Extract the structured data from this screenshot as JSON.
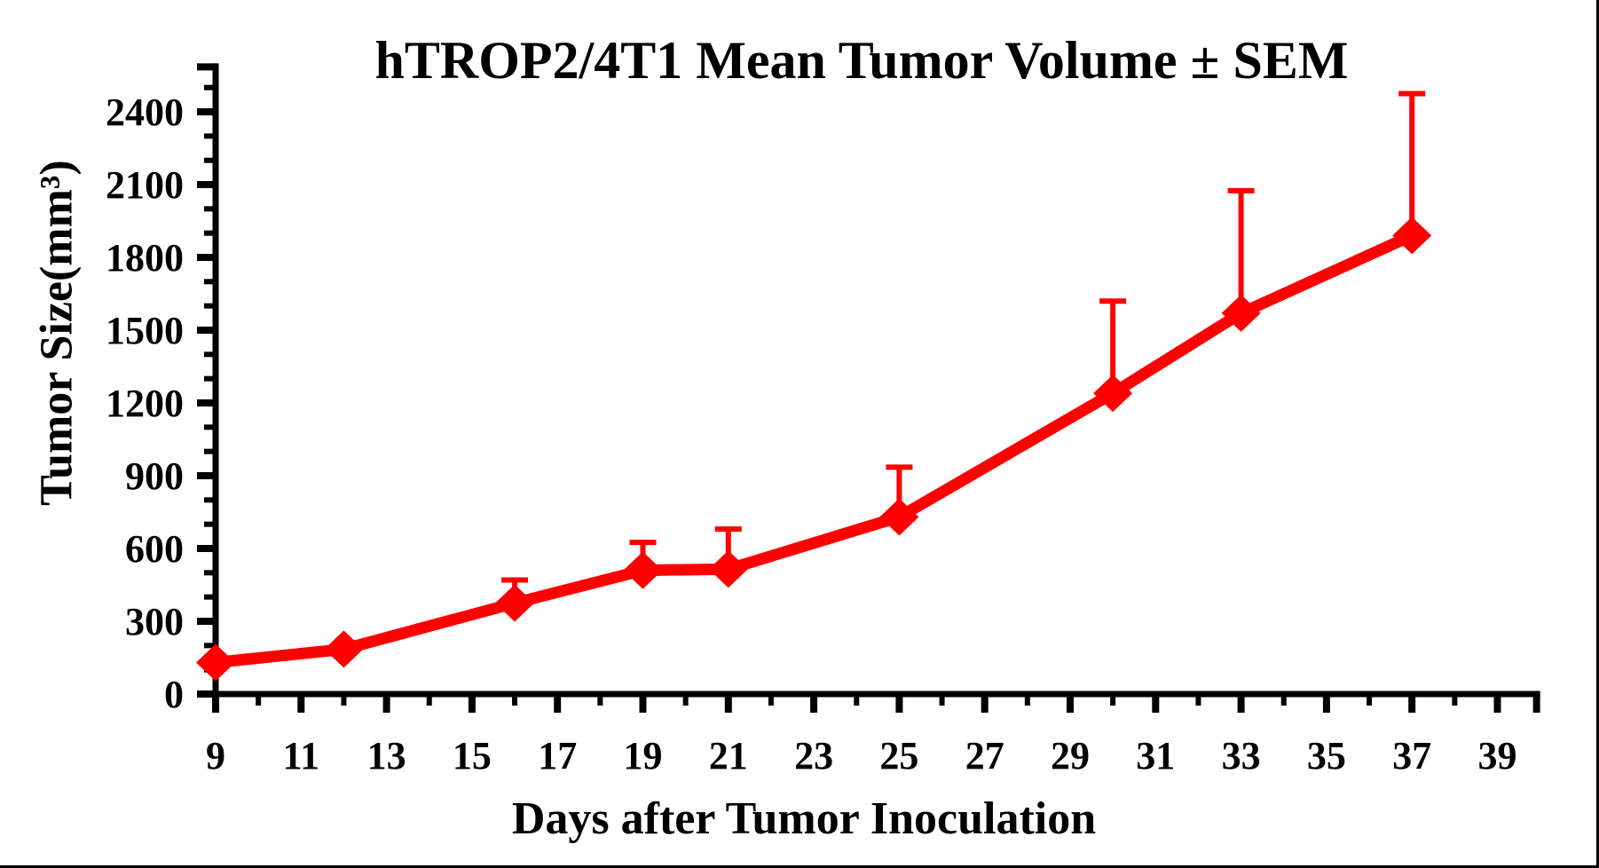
{
  "title": "hTROP2/4T1 Mean Tumor Volume ± SEM",
  "chart_data": {
    "type": "line",
    "title": "hTROP2/4T1 Mean Tumor Volume ± SEM",
    "xlabel": "Days after Tumor Inoculation",
    "ylabel": "Tumor Size(mm³)",
    "grid": false,
    "legend": false,
    "marker": "diamond",
    "error_bars": "upper_only",
    "x_axis": {
      "min": 9,
      "end": 40,
      "major_tick_step": 2,
      "minor_tick_step": 1,
      "tick_labels": [
        9,
        11,
        13,
        15,
        17,
        19,
        21,
        23,
        25,
        27,
        29,
        31,
        33,
        35,
        37,
        39
      ]
    },
    "y_axis": {
      "min": 0,
      "max": 2400,
      "end": 2600,
      "major_tick_step": 300,
      "minor_tick_step": 100,
      "tick_labels": [
        0,
        300,
        600,
        900,
        1200,
        1500,
        1800,
        2100,
        2400
      ]
    },
    "series": [
      {
        "name": "hTROP2/4T1 mean tumor volume",
        "color": "#ff0000",
        "x": [
          9,
          12,
          16,
          19,
          21,
          25,
          30,
          33,
          37
        ],
        "y": [
          130,
          185,
          375,
          510,
          515,
          730,
          1240,
          1570,
          1890
        ],
        "sem_upper": [
          0,
          0,
          95,
          115,
          165,
          205,
          380,
          505,
          585
        ]
      }
    ]
  },
  "colors": {
    "series_red": "#ff0000",
    "axis_black": "#000000",
    "background": "#ffffff"
  }
}
